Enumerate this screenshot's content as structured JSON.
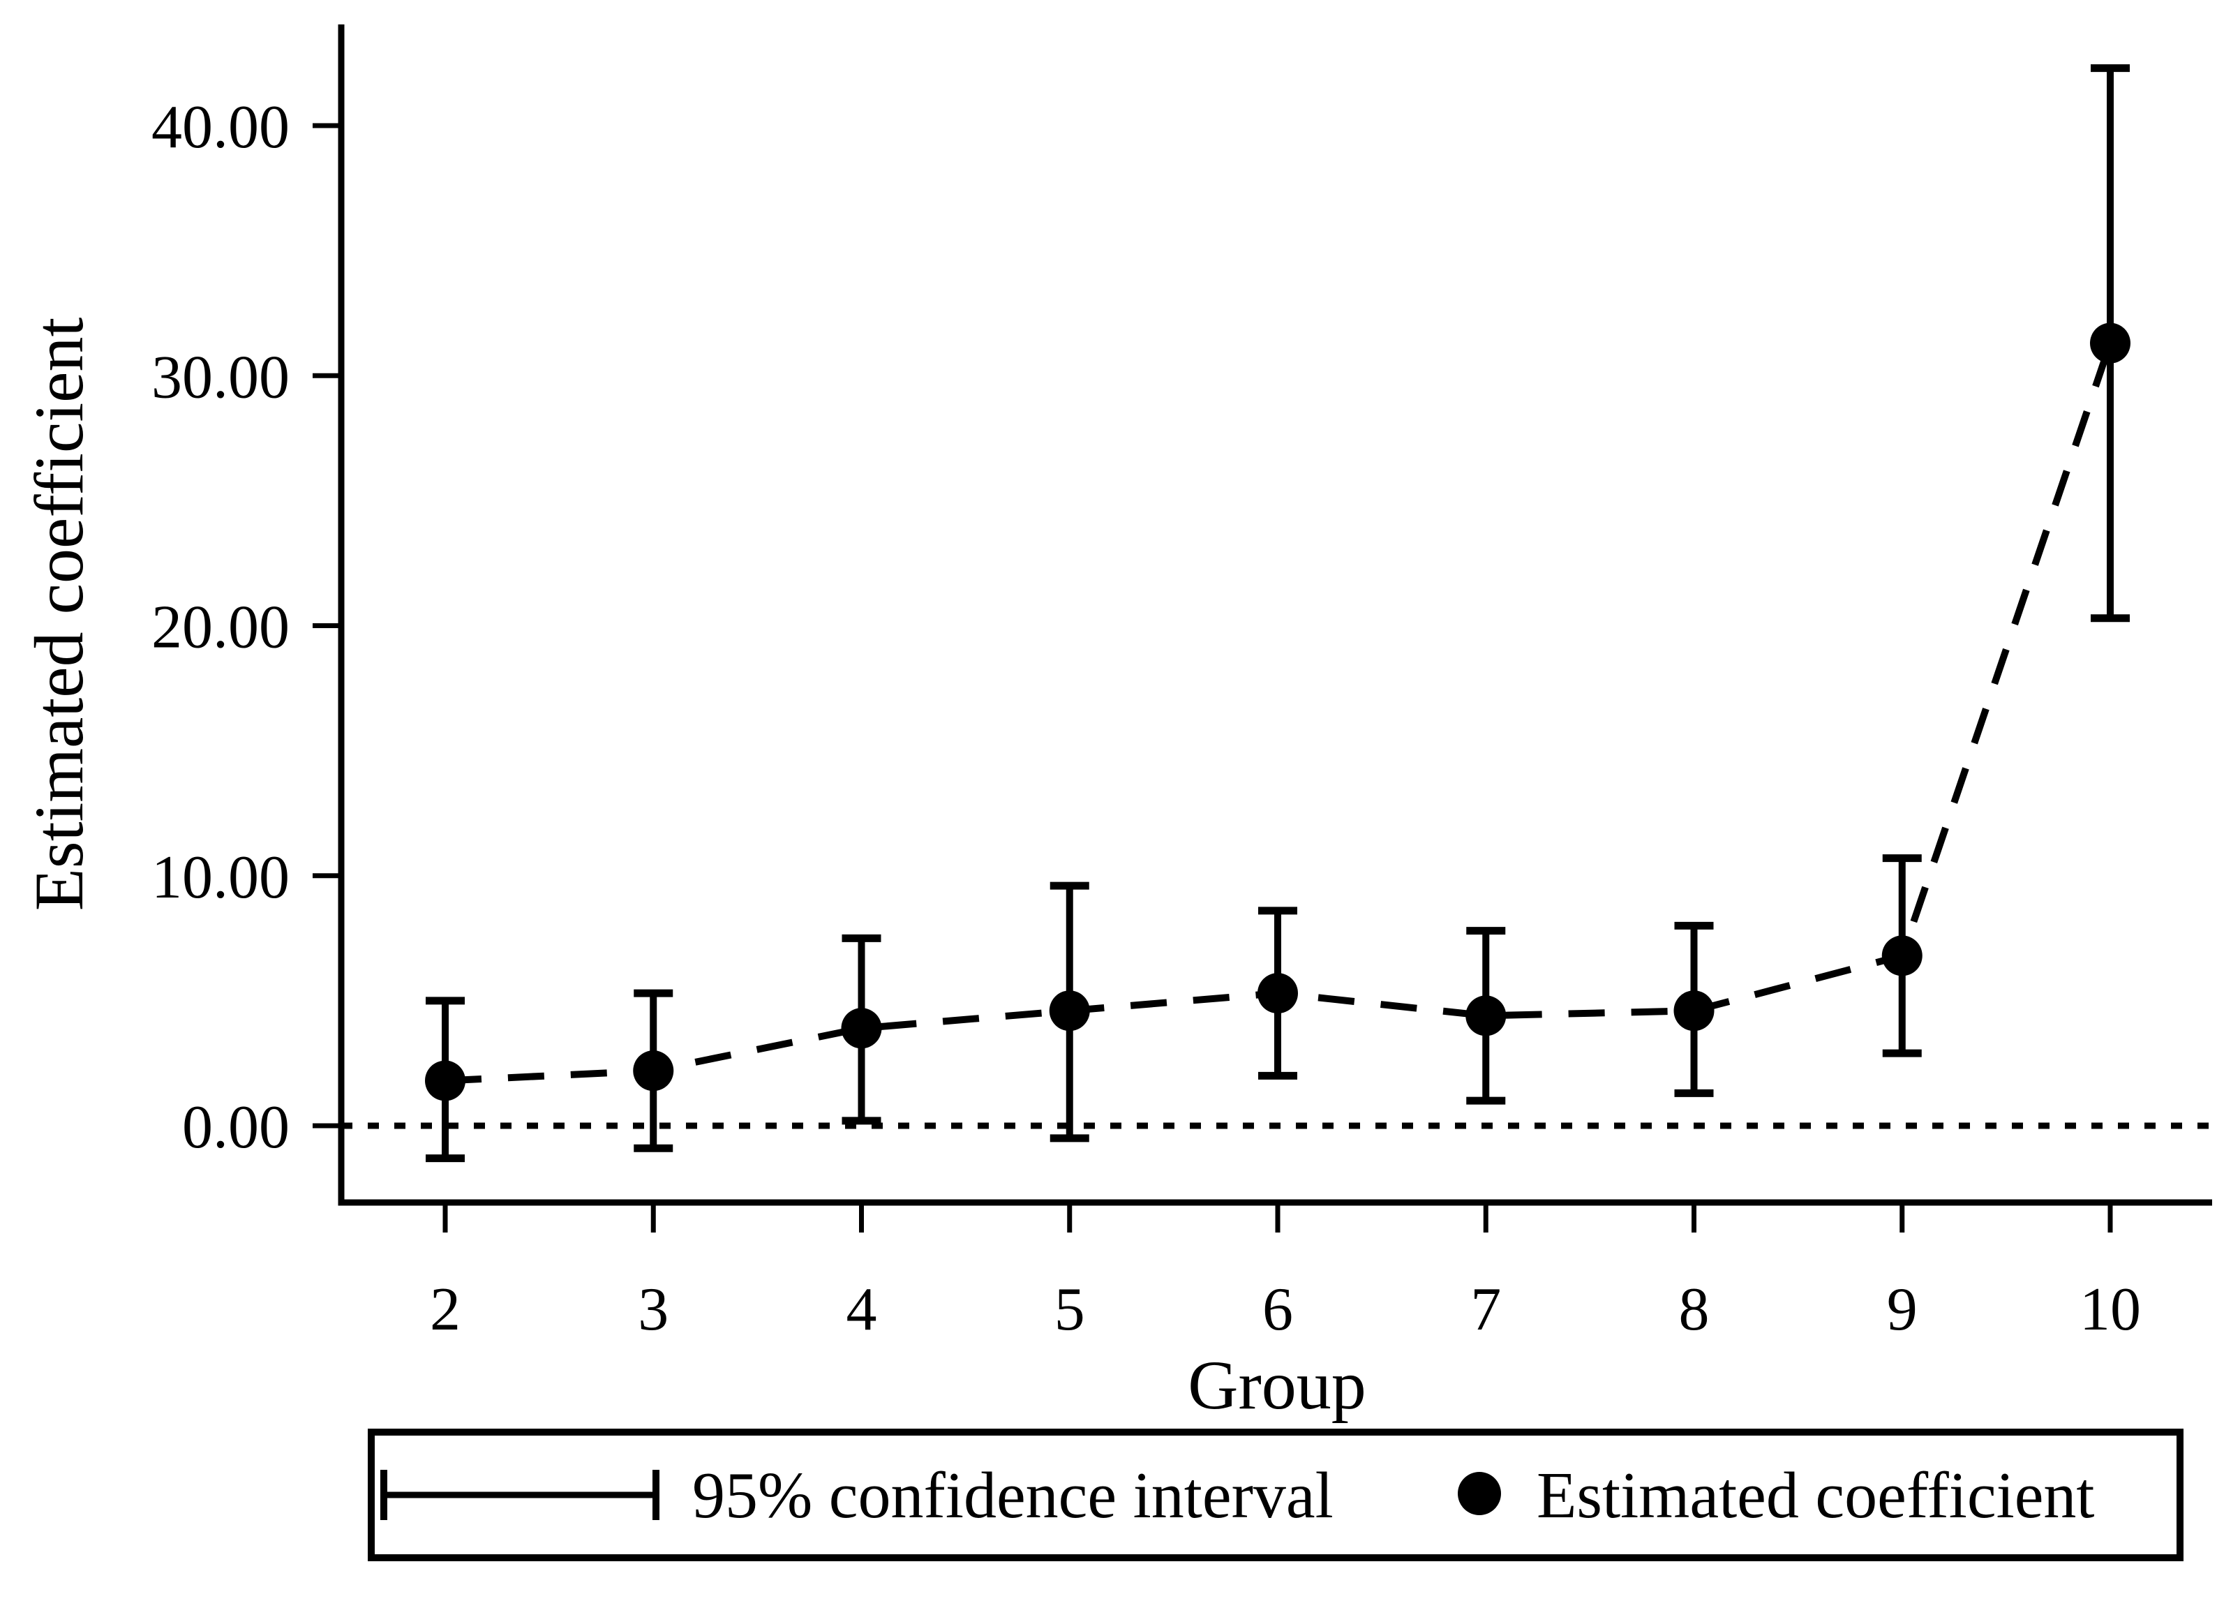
{
  "figure": {
    "background": "#ffffff",
    "foreground": "#000000"
  },
  "chart_data": {
    "type": "scatter",
    "subtype": "coefficient-plot-with-error-bars",
    "title": "",
    "xlabel": "Group",
    "ylabel": "Estimated coefficient",
    "categories": [
      "2",
      "3",
      "4",
      "5",
      "6",
      "7",
      "8",
      "9",
      "10"
    ],
    "series": [
      {
        "name": "Estimated coefficient",
        "values": [
          1.8,
          2.2,
          3.9,
          4.6,
          5.3,
          4.4,
          4.6,
          6.8,
          31.3
        ]
      }
    ],
    "ci_lower": [
      -1.3,
      -0.9,
      0.2,
      -0.5,
      2.0,
      1.0,
      1.3,
      2.9,
      20.3
    ],
    "ci_upper": [
      5.0,
      5.3,
      7.5,
      9.6,
      8.6,
      7.8,
      8.0,
      10.7,
      42.3
    ],
    "y_ticks": [
      {
        "value": 0,
        "label": "0.00"
      },
      {
        "value": 10,
        "label": "10.00"
      },
      {
        "value": 20,
        "label": "20.00"
      },
      {
        "value": 30,
        "label": "30.00"
      },
      {
        "value": 40,
        "label": "40.00"
      }
    ],
    "ylim": [
      -3,
      44
    ],
    "grid": false,
    "zero_reference_line": {
      "value": 0,
      "style": "dotted"
    },
    "connector_line_style": "dashed",
    "marker": {
      "shape": "filled-circle",
      "color": "#000000"
    },
    "legend_position": "bottom",
    "legend": [
      {
        "symbol": "error-bar-sample",
        "label": "95% confidence interval"
      },
      {
        "symbol": "filled-circle",
        "label": "Estimated coefficient"
      }
    ],
    "colors": {
      "points": "#000000",
      "lines": "#000000",
      "background": "#ffffff"
    }
  }
}
